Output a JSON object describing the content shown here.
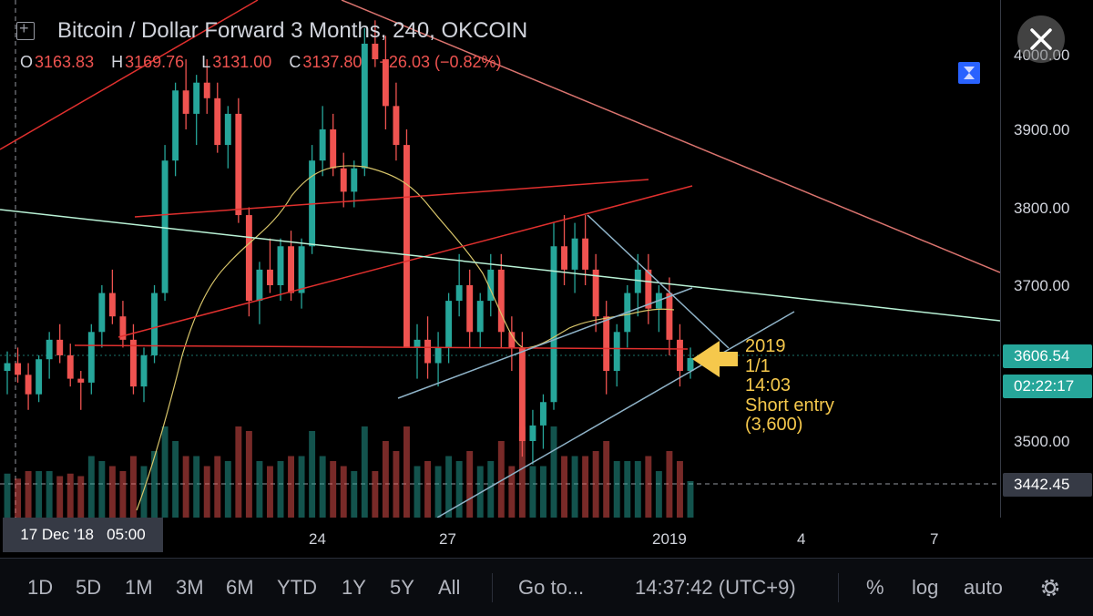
{
  "header": {
    "symbol_title": "Bitcoin / Dollar Forward 3 Months, 240, OKCOIN",
    "ohlc": {
      "open_key": "O",
      "open": "3163.83",
      "high_key": "H",
      "high": "3169.76",
      "low_key": "L",
      "low": "3131.00",
      "close_key": "C",
      "close": "3137.80",
      "change": "−26.03 (−0.82%)"
    }
  },
  "annotation": {
    "line1": "2019",
    "line2": "1/1",
    "line3": "14:03",
    "line4": "Short entry",
    "line5": "(3,600)"
  },
  "price_axis": {
    "ticks": [
      "3900.00",
      "3800.00",
      "3700.00",
      "3500.00"
    ],
    "top_partial": "4000.00",
    "current_price": "3606.54",
    "countdown": "02:22:17",
    "crosshair_price": "3442.45"
  },
  "time_axis": {
    "crosshair_label": "17 Dec '18   05:00",
    "ticks": [
      "24",
      "27",
      "2019",
      "4",
      "7"
    ]
  },
  "toolbar": {
    "ranges": [
      "1D",
      "5D",
      "1M",
      "3M",
      "6M",
      "YTD",
      "1Y",
      "5Y",
      "All"
    ],
    "goto": "Go to...",
    "clock": "14:37:42 (UTC+9)",
    "percent": "%",
    "log": "log",
    "auto": "auto"
  },
  "colors": {
    "up": "#26a69a",
    "down": "#ef5350",
    "annotation": "#f5c84c",
    "trend_red": "#e0302e",
    "trend_pink": "#d9736e",
    "trend_mint": "#b9f2d6",
    "wedge_gray": "#8fb3c8",
    "ma_yellow": "#d8c56a"
  },
  "icons": {
    "close": "close-icon",
    "add_indicator": "plus-square-icon",
    "reset_scale": "hourglass-icon",
    "settings": "gear-icon",
    "arrow": "arrow-left-icon"
  },
  "chart_data": {
    "type": "candlestick",
    "symbol": "Bitcoin / Dollar Forward 3 Months",
    "interval": "240",
    "exchange": "OKCOIN",
    "ylim": [
      3420,
      4050
    ],
    "x_ticks": [
      "24",
      "27",
      "2019",
      "4",
      "7"
    ],
    "current_price": 3606.54,
    "annotation_price": 3600,
    "candles": [
      {
        "o": 3590,
        "h": 3615,
        "l": 3560,
        "c": 3600
      },
      {
        "o": 3600,
        "h": 3620,
        "l": 3575,
        "c": 3585
      },
      {
        "o": 3585,
        "h": 3600,
        "l": 3540,
        "c": 3560
      },
      {
        "o": 3560,
        "h": 3610,
        "l": 3550,
        "c": 3605
      },
      {
        "o": 3605,
        "h": 3640,
        "l": 3580,
        "c": 3630
      },
      {
        "o": 3630,
        "h": 3650,
        "l": 3600,
        "c": 3610
      },
      {
        "o": 3610,
        "h": 3625,
        "l": 3570,
        "c": 3580
      },
      {
        "o": 3580,
        "h": 3590,
        "l": 3540,
        "c": 3575
      },
      {
        "o": 3575,
        "h": 3650,
        "l": 3560,
        "c": 3640
      },
      {
        "o": 3640,
        "h": 3700,
        "l": 3620,
        "c": 3690
      },
      {
        "o": 3690,
        "h": 3720,
        "l": 3650,
        "c": 3660
      },
      {
        "o": 3660,
        "h": 3680,
        "l": 3620,
        "c": 3630
      },
      {
        "o": 3630,
        "h": 3650,
        "l": 3560,
        "c": 3570
      },
      {
        "o": 3570,
        "h": 3620,
        "l": 3550,
        "c": 3610
      },
      {
        "o": 3610,
        "h": 3700,
        "l": 3600,
        "c": 3690
      },
      {
        "o": 3690,
        "h": 3880,
        "l": 3680,
        "c": 3860
      },
      {
        "o": 3860,
        "h": 3960,
        "l": 3840,
        "c": 3950
      },
      {
        "o": 3950,
        "h": 3990,
        "l": 3900,
        "c": 3920
      },
      {
        "o": 3920,
        "h": 3970,
        "l": 3880,
        "c": 3960
      },
      {
        "o": 3960,
        "h": 3990,
        "l": 3920,
        "c": 3940
      },
      {
        "o": 3940,
        "h": 3960,
        "l": 3870,
        "c": 3880
      },
      {
        "o": 3880,
        "h": 3930,
        "l": 3850,
        "c": 3920
      },
      {
        "o": 3920,
        "h": 3940,
        "l": 3780,
        "c": 3790
      },
      {
        "o": 3790,
        "h": 3800,
        "l": 3660,
        "c": 3680
      },
      {
        "o": 3680,
        "h": 3730,
        "l": 3650,
        "c": 3720
      },
      {
        "o": 3720,
        "h": 3760,
        "l": 3690,
        "c": 3700
      },
      {
        "o": 3700,
        "h": 3760,
        "l": 3680,
        "c": 3750
      },
      {
        "o": 3750,
        "h": 3770,
        "l": 3680,
        "c": 3690
      },
      {
        "o": 3690,
        "h": 3760,
        "l": 3670,
        "c": 3750
      },
      {
        "o": 3750,
        "h": 3880,
        "l": 3740,
        "c": 3860
      },
      {
        "o": 3860,
        "h": 3930,
        "l": 3840,
        "c": 3900
      },
      {
        "o": 3900,
        "h": 3920,
        "l": 3840,
        "c": 3850
      },
      {
        "o": 3850,
        "h": 3870,
        "l": 3800,
        "c": 3820
      },
      {
        "o": 3820,
        "h": 3860,
        "l": 3800,
        "c": 3850
      },
      {
        "o": 3850,
        "h": 4030,
        "l": 3840,
        "c": 4010
      },
      {
        "o": 4010,
        "h": 4040,
        "l": 3980,
        "c": 3990
      },
      {
        "o": 3990,
        "h": 4020,
        "l": 3900,
        "c": 3930
      },
      {
        "o": 3930,
        "h": 3960,
        "l": 3860,
        "c": 3880
      },
      {
        "o": 3880,
        "h": 3900,
        "l": 3620,
        "c": 3620
      },
      {
        "o": 3620,
        "h": 3650,
        "l": 3580,
        "c": 3630
      },
      {
        "o": 3630,
        "h": 3660,
        "l": 3580,
        "c": 3600
      },
      {
        "o": 3600,
        "h": 3640,
        "l": 3570,
        "c": 3620
      },
      {
        "o": 3620,
        "h": 3690,
        "l": 3600,
        "c": 3680
      },
      {
        "o": 3680,
        "h": 3740,
        "l": 3660,
        "c": 3700
      },
      {
        "o": 3700,
        "h": 3720,
        "l": 3620,
        "c": 3640
      },
      {
        "o": 3640,
        "h": 3690,
        "l": 3620,
        "c": 3680
      },
      {
        "o": 3680,
        "h": 3740,
        "l": 3660,
        "c": 3720
      },
      {
        "o": 3720,
        "h": 3740,
        "l": 3620,
        "c": 3640
      },
      {
        "o": 3640,
        "h": 3660,
        "l": 3590,
        "c": 3620
      },
      {
        "o": 3620,
        "h": 3640,
        "l": 3480,
        "c": 3500
      },
      {
        "o": 3500,
        "h": 3540,
        "l": 3470,
        "c": 3520
      },
      {
        "o": 3520,
        "h": 3560,
        "l": 3490,
        "c": 3550
      },
      {
        "o": 3550,
        "h": 3780,
        "l": 3540,
        "c": 3750
      },
      {
        "o": 3750,
        "h": 3790,
        "l": 3700,
        "c": 3720
      },
      {
        "o": 3720,
        "h": 3780,
        "l": 3690,
        "c": 3760
      },
      {
        "o": 3760,
        "h": 3790,
        "l": 3700,
        "c": 3720
      },
      {
        "o": 3720,
        "h": 3740,
        "l": 3640,
        "c": 3660
      },
      {
        "o": 3660,
        "h": 3680,
        "l": 3560,
        "c": 3590
      },
      {
        "o": 3590,
        "h": 3650,
        "l": 3570,
        "c": 3640
      },
      {
        "o": 3640,
        "h": 3700,
        "l": 3620,
        "c": 3690
      },
      {
        "o": 3690,
        "h": 3740,
        "l": 3660,
        "c": 3720
      },
      {
        "o": 3720,
        "h": 3740,
        "l": 3650,
        "c": 3670
      },
      {
        "o": 3670,
        "h": 3700,
        "l": 3640,
        "c": 3690
      },
      {
        "o": 3690,
        "h": 3710,
        "l": 3610,
        "c": 3630
      },
      {
        "o": 3630,
        "h": 3650,
        "l": 3570,
        "c": 3590
      },
      {
        "o": 3590,
        "h": 3620,
        "l": 3580,
        "c": 3606.54
      }
    ]
  }
}
